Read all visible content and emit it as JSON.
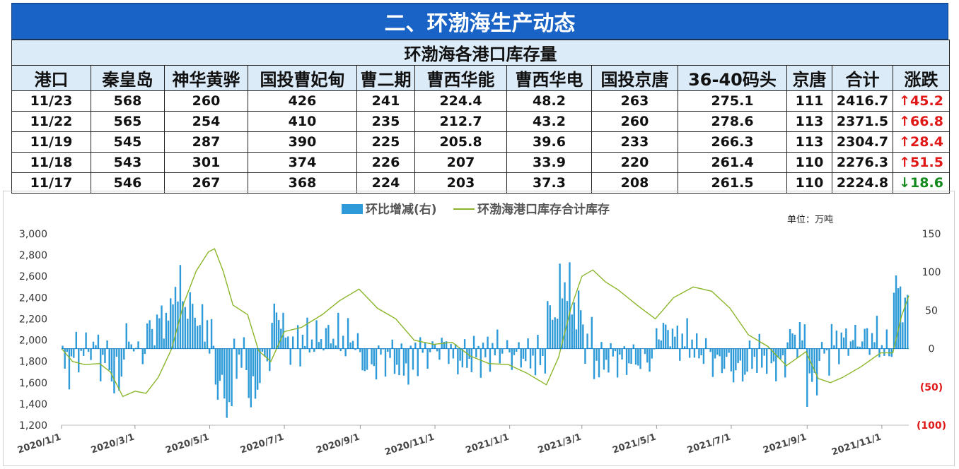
{
  "header": {
    "title": "二、环渤海生产动态"
  },
  "table": {
    "subtitle": "环渤海各港口库存量",
    "columns": [
      "港口",
      "秦皇岛",
      "神华黄骅",
      "国投曹妃甸",
      "曹二期",
      "曹西华能",
      "曹西华电",
      "国投京唐",
      "36-40码头",
      "京唐",
      "合计",
      "涨跌"
    ],
    "rows": [
      {
        "cells": [
          "11/23",
          "568",
          "260",
          "426",
          "241",
          "224.4",
          "48.2",
          "263",
          "275.1",
          "111",
          "2416.7"
        ],
        "change": "↑45.2",
        "dir": "up"
      },
      {
        "cells": [
          "11/22",
          "565",
          "254",
          "410",
          "235",
          "212.7",
          "43.2",
          "260",
          "278.6",
          "113",
          "2371.5"
        ],
        "change": "↑66.8",
        "dir": "up"
      },
      {
        "cells": [
          "11/19",
          "545",
          "287",
          "390",
          "225",
          "205.8",
          "39.6",
          "233",
          "266.3",
          "113",
          "2304.7"
        ],
        "change": "↑28.4",
        "dir": "up"
      },
      {
        "cells": [
          "11/18",
          "543",
          "301",
          "374",
          "226",
          "207",
          "33.9",
          "220",
          "261.4",
          "110",
          "2276.3"
        ],
        "change": "↑51.5",
        "dir": "up"
      },
      {
        "cells": [
          "11/17",
          "546",
          "267",
          "368",
          "224",
          "203",
          "37.3",
          "208",
          "261.5",
          "110",
          "2224.8"
        ],
        "change": "↓18.6",
        "dir": "down"
      }
    ]
  },
  "chart_data": {
    "type": "line",
    "title": "",
    "unit_label": "单位：万吨",
    "legend": [
      {
        "name": "环比增减(右)",
        "kind": "area",
        "color": "#2e9bd8"
      },
      {
        "name": "环渤海港口库存合计库存",
        "kind": "line",
        "color": "#8bb52a"
      }
    ],
    "legend_position": "top-center",
    "x_ticks": [
      "2020/1/1",
      "2020/3/1",
      "2020/5/1",
      "2020/7/1",
      "2020/9/1",
      "2020/11/1",
      "2021/1/1",
      "2021/3/1",
      "2021/5/1",
      "2021/7/1",
      "2021/9/1",
      "2021/11/1"
    ],
    "x_range": [
      "2020/1/1",
      "2021/11/23"
    ],
    "y_left": {
      "ticks": [
        "1,200",
        "1,400",
        "1,600",
        "1,800",
        "2,000",
        "2,200",
        "2,400",
        "2,600",
        "2,800",
        "3,000"
      ],
      "min": 1200,
      "max": 3000
    },
    "y_right": {
      "ticks": [
        "(100)",
        "(50)",
        "0",
        "50",
        "100",
        "150"
      ],
      "min": -100,
      "max": 150,
      "negative_color": "#e01818"
    },
    "grid": false,
    "series": [
      {
        "name": "环渤海港口库存合计库存",
        "axis": "left",
        "points": [
          [
            "2020/1/1",
            1920
          ],
          [
            "2020/1/10",
            1800
          ],
          [
            "2020/1/20",
            1770
          ],
          [
            "2020/2/1",
            1780
          ],
          [
            "2020/2/10",
            1700
          ],
          [
            "2020/2/20",
            1470
          ],
          [
            "2020/3/1",
            1520
          ],
          [
            "2020/3/10",
            1500
          ],
          [
            "2020/3/20",
            1650
          ],
          [
            "2020/3/31",
            1920
          ],
          [
            "2020/4/10",
            2350
          ],
          [
            "2020/4/20",
            2650
          ],
          [
            "2020/4/30",
            2830
          ],
          [
            "2020/5/5",
            2860
          ],
          [
            "2020/5/12",
            2650
          ],
          [
            "2020/5/20",
            2330
          ],
          [
            "2020/6/1",
            2240
          ],
          [
            "2020/6/10",
            1900
          ],
          [
            "2020/6/20",
            1800
          ],
          [
            "2020/7/1",
            2080
          ],
          [
            "2020/7/15",
            2120
          ],
          [
            "2020/8/1",
            2240
          ],
          [
            "2020/8/15",
            2370
          ],
          [
            "2020/8/31",
            2480
          ],
          [
            "2020/9/15",
            2300
          ],
          [
            "2020/9/30",
            2200
          ],
          [
            "2020/10/15",
            2000
          ],
          [
            "2020/10/31",
            1960
          ],
          [
            "2020/11/15",
            1980
          ],
          [
            "2020/11/30",
            1850
          ],
          [
            "2020/12/15",
            1780
          ],
          [
            "2020/12/31",
            1770
          ],
          [
            "2021/1/15",
            1690
          ],
          [
            "2021/1/31",
            1580
          ],
          [
            "2021/2/10",
            1840
          ],
          [
            "2021/2/20",
            2300
          ],
          [
            "2021/3/1",
            2600
          ],
          [
            "2021/3/10",
            2660
          ],
          [
            "2021/3/20",
            2550
          ],
          [
            "2021/3/31",
            2470
          ],
          [
            "2021/4/15",
            2330
          ],
          [
            "2021/4/30",
            2200
          ],
          [
            "2021/5/15",
            2400
          ],
          [
            "2021/5/31",
            2500
          ],
          [
            "2021/6/15",
            2460
          ],
          [
            "2021/6/30",
            2300
          ],
          [
            "2021/7/15",
            2050
          ],
          [
            "2021/7/31",
            1940
          ],
          [
            "2021/8/15",
            1760
          ],
          [
            "2021/8/31",
            1890
          ],
          [
            "2021/9/10",
            1640
          ],
          [
            "2021/9/20",
            1600
          ],
          [
            "2021/9/30",
            1650
          ],
          [
            "2021/10/15",
            1750
          ],
          [
            "2021/10/31",
            1880
          ],
          [
            "2021/11/10",
            1880
          ],
          [
            "2021/11/17",
            2225
          ],
          [
            "2021/11/23",
            2417
          ]
        ]
      }
    ]
  }
}
